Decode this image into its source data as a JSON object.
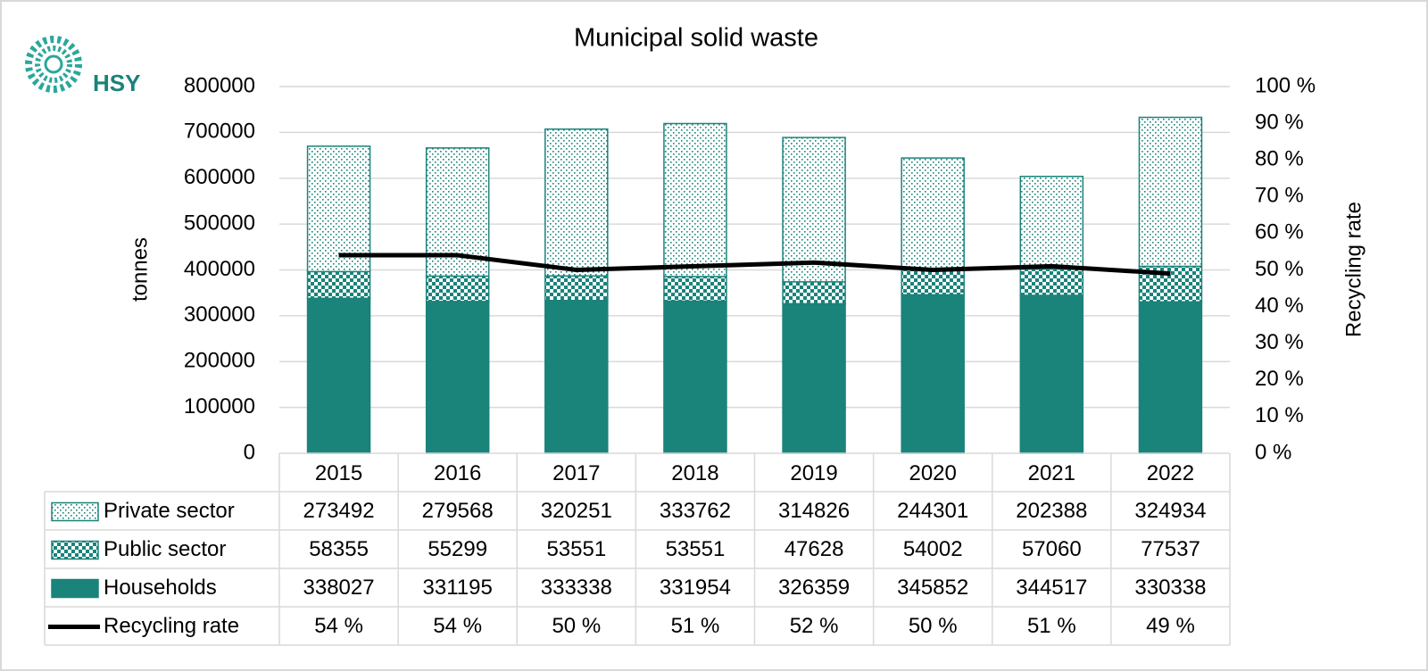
{
  "logo": "HSY",
  "chart_data": {
    "type": "bar",
    "stacked": true,
    "title": "Municipal solid waste",
    "y_label": "tonnes",
    "y2_label": "Recycling rate",
    "categories": [
      "2015",
      "2016",
      "2017",
      "2018",
      "2019",
      "2020",
      "2021",
      "2022"
    ],
    "series": [
      {
        "name": "Households",
        "color": "#1a837a",
        "pattern": "solid",
        "values": [
          338027,
          331195,
          333338,
          331954,
          326359,
          345852,
          344517,
          330338
        ]
      },
      {
        "name": "Public sector",
        "color": "#1a837a",
        "pattern": "checker",
        "values": [
          58355,
          55299,
          53551,
          53551,
          47628,
          54002,
          57060,
          77537
        ]
      },
      {
        "name": "Private sector",
        "color": "#1a837a",
        "pattern": "dots",
        "values": [
          273492,
          279568,
          320251,
          333762,
          314826,
          244301,
          202388,
          324934
        ]
      },
      {
        "name": "Recycling rate",
        "type": "line",
        "axis": "y2",
        "color": "#000000",
        "values": [
          54,
          54,
          50,
          51,
          52,
          50,
          51,
          49
        ],
        "value_labels": [
          "54 %",
          "54 %",
          "50 %",
          "51 %",
          "52 %",
          "50 %",
          "51 %",
          "49 %"
        ]
      }
    ],
    "ylim": [
      0,
      800000
    ],
    "yticks": [
      0,
      100000,
      200000,
      300000,
      400000,
      500000,
      600000,
      700000,
      800000
    ],
    "y2lim": [
      0,
      100
    ],
    "y2ticks": [
      {
        "value": 0,
        "label": "0 %"
      },
      {
        "value": 10,
        "label": "10 %"
      },
      {
        "value": 20,
        "label": "20 %"
      },
      {
        "value": 30,
        "label": "30 %"
      },
      {
        "value": 40,
        "label": "40 %"
      },
      {
        "value": 50,
        "label": "50 %"
      },
      {
        "value": 60,
        "label": "60 %"
      },
      {
        "value": 70,
        "label": "70 %"
      },
      {
        "value": 80,
        "label": "80 %"
      },
      {
        "value": 90,
        "label": "90 %"
      },
      {
        "value": 100,
        "label": "100 %"
      }
    ],
    "grid": true,
    "data_table": true
  }
}
